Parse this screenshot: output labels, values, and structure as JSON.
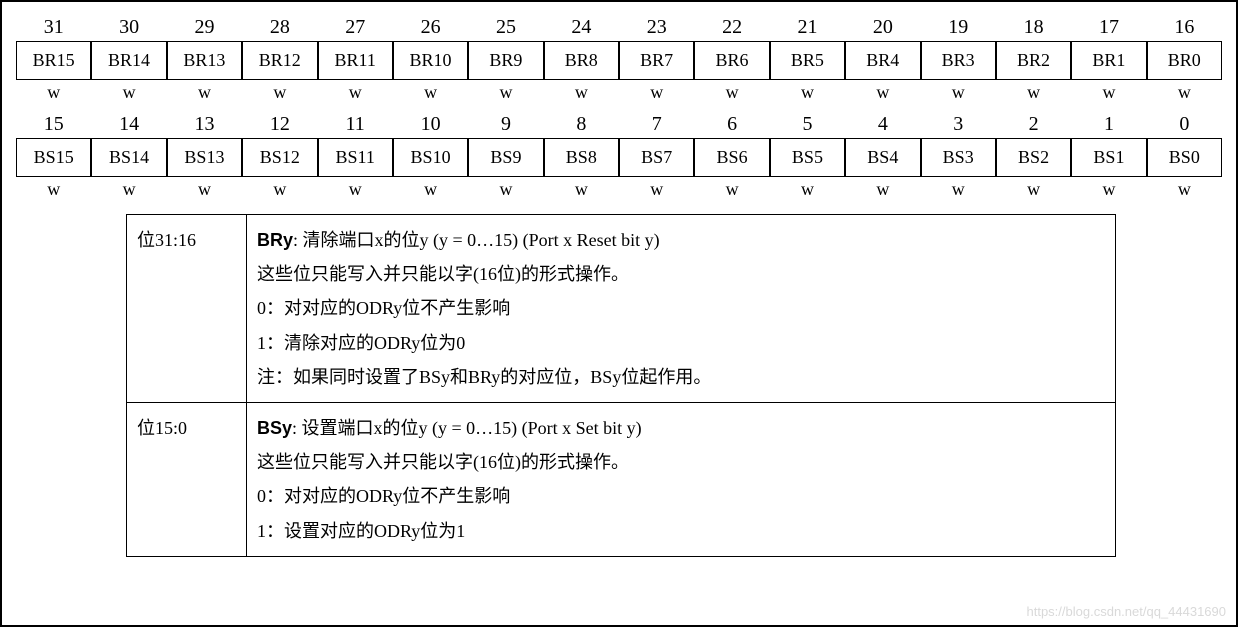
{
  "register": {
    "upper": {
      "bit_nums": [
        "31",
        "30",
        "29",
        "28",
        "27",
        "26",
        "25",
        "24",
        "23",
        "22",
        "21",
        "20",
        "19",
        "18",
        "17",
        "16"
      ],
      "fields": [
        "BR15",
        "BR14",
        "BR13",
        "BR12",
        "BR11",
        "BR10",
        "BR9",
        "BR8",
        "BR7",
        "BR6",
        "BR5",
        "BR4",
        "BR3",
        "BR2",
        "BR1",
        "BR0"
      ],
      "access": [
        "w",
        "w",
        "w",
        "w",
        "w",
        "w",
        "w",
        "w",
        "w",
        "w",
        "w",
        "w",
        "w",
        "w",
        "w",
        "w"
      ]
    },
    "lower": {
      "bit_nums": [
        "15",
        "14",
        "13",
        "12",
        "11",
        "10",
        "9",
        "8",
        "7",
        "6",
        "5",
        "4",
        "3",
        "2",
        "1",
        "0"
      ],
      "fields": [
        "BS15",
        "BS14",
        "BS13",
        "BS12",
        "BS11",
        "BS10",
        "BS9",
        "BS8",
        "BS7",
        "BS6",
        "BS5",
        "BS4",
        "BS3",
        "BS2",
        "BS1",
        "BS0"
      ],
      "access": [
        "w",
        "w",
        "w",
        "w",
        "w",
        "w",
        "w",
        "w",
        "w",
        "w",
        "w",
        "w",
        "w",
        "w",
        "w",
        "w"
      ]
    }
  },
  "descriptions": [
    {
      "range": "位31:16",
      "title_bold": "BRy",
      "title_rest": ": 清除端口x的位y (y = 0…15) (Port x Reset bit y)",
      "lines": [
        "这些位只能写入并只能以字(16位)的形式操作。",
        "0：对对应的ODRy位不产生影响",
        "1：清除对应的ODRy位为0",
        "注：如果同时设置了BSy和BRy的对应位，BSy位起作用。"
      ]
    },
    {
      "range": "位15:0",
      "title_bold": "BSy",
      "title_rest": ": 设置端口x的位y (y = 0…15) (Port x Set bit y)",
      "lines": [
        "这些位只能写入并只能以字(16位)的形式操作。",
        "0：对对应的ODRy位不产生影响",
        "1：设置对应的ODRy位为1"
      ]
    }
  ],
  "watermark": "https://blog.csdn.net/qq_44431690"
}
